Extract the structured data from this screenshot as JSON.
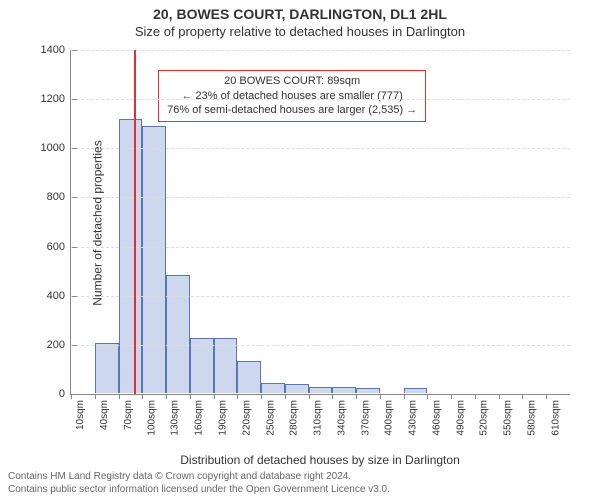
{
  "title": "20, BOWES COURT, DARLINGTON, DL1 2HL",
  "subtitle": "Size of property relative to detached houses in Darlington",
  "ylabel": "Number of detached properties",
  "xlabel": "Distribution of detached houses by size in Darlington",
  "ylim": [
    0,
    1400
  ],
  "ytick_step": 200,
  "yticks": [
    "0",
    "200",
    "400",
    "600",
    "800",
    "1000",
    "1200",
    "1400"
  ],
  "xticks": [
    "10sqm",
    "40sqm",
    "70sqm",
    "100sqm",
    "130sqm",
    "160sqm",
    "190sqm",
    "220sqm",
    "250sqm",
    "280sqm",
    "310sqm",
    "340sqm",
    "370sqm",
    "400sqm",
    "430sqm",
    "460sqm",
    "490sqm",
    "520sqm",
    "550sqm",
    "580sqm",
    "610sqm"
  ],
  "x_range_sqm": [
    10,
    640
  ],
  "bar_width_sqm": 30,
  "bars": [
    {
      "x_sqm": 10,
      "value": 0
    },
    {
      "x_sqm": 40,
      "value": 205
    },
    {
      "x_sqm": 70,
      "value": 1120
    },
    {
      "x_sqm": 100,
      "value": 1090
    },
    {
      "x_sqm": 130,
      "value": 480
    },
    {
      "x_sqm": 160,
      "value": 225
    },
    {
      "x_sqm": 190,
      "value": 225
    },
    {
      "x_sqm": 220,
      "value": 130
    },
    {
      "x_sqm": 250,
      "value": 40
    },
    {
      "x_sqm": 280,
      "value": 35
    },
    {
      "x_sqm": 310,
      "value": 25
    },
    {
      "x_sqm": 340,
      "value": 25
    },
    {
      "x_sqm": 370,
      "value": 20
    },
    {
      "x_sqm": 400,
      "value": 0
    },
    {
      "x_sqm": 430,
      "value": 20
    },
    {
      "x_sqm": 460,
      "value": 0
    },
    {
      "x_sqm": 490,
      "value": 0
    },
    {
      "x_sqm": 520,
      "value": 0
    },
    {
      "x_sqm": 550,
      "value": 0
    },
    {
      "x_sqm": 580,
      "value": 0
    },
    {
      "x_sqm": 610,
      "value": 0
    }
  ],
  "bar_fill": "#cdd8ef",
  "bar_stroke": "#5b76b5",
  "grid_color": "#dddddd",
  "axis_color": "#888888",
  "background": "#ffffff",
  "marker": {
    "x_sqm": 89,
    "color": "#e03030"
  },
  "legend": {
    "border_color": "#e03030",
    "lines": [
      "20 BOWES COURT: 89sqm",
      "← 23% of detached houses are smaller (777)",
      "76% of semi-detached houses are larger (2,535) →"
    ],
    "pos_sqm": 120,
    "pos_y_value": 1320
  },
  "attribution": [
    "Contains HM Land Registry data © Crown copyright and database right 2024.",
    "Contains public sector information licensed under the Open Government Licence v3.0."
  ],
  "title_fontsize": 14,
  "label_fontsize": 12,
  "tick_fontsize": 11
}
